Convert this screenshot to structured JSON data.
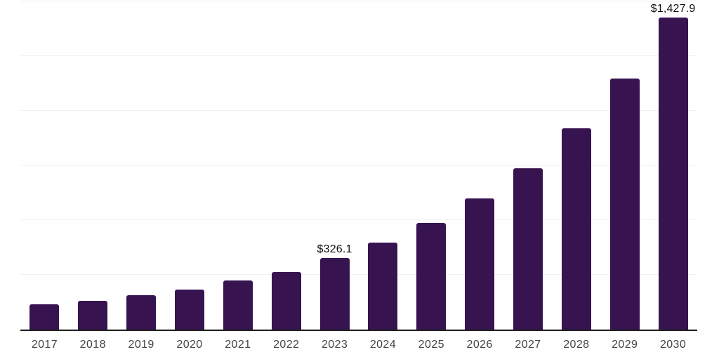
{
  "chart_data": {
    "type": "bar",
    "title": "",
    "xlabel": "",
    "ylabel": "",
    "categories": [
      "2017",
      "2018",
      "2019",
      "2020",
      "2021",
      "2022",
      "2023",
      "2024",
      "2025",
      "2026",
      "2027",
      "2028",
      "2029",
      "2030"
    ],
    "values": [
      116,
      133,
      156,
      183,
      224,
      264,
      326.1,
      398,
      487,
      601,
      738,
      919,
      1147,
      1427.9
    ],
    "bar_labels": [
      "",
      "",
      "",
      "",
      "",
      "",
      "$326.1",
      "",
      "",
      "",
      "",
      "",
      "",
      "$1,427.9"
    ],
    "ylim": [
      0,
      1500
    ],
    "gridline_interval": 250,
    "grid": "horizontal",
    "legend_position": "none",
    "y_axis_labels_shown": false
  },
  "colors": {
    "background": "#ffffff",
    "bar": "#371450",
    "axis_line": "#1f1f1f",
    "gridline": "#f0eff3",
    "x_tick_label": "#444444",
    "data_label": "#111111"
  }
}
